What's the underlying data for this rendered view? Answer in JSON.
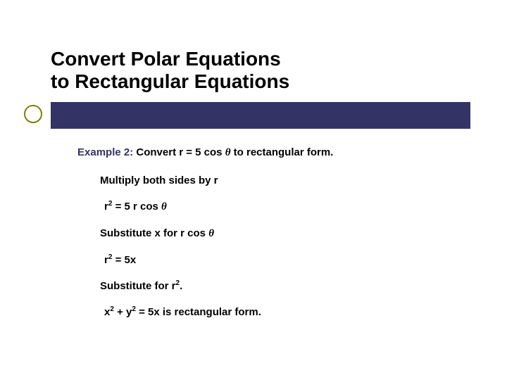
{
  "title_line1": "Convert Polar Equations",
  "title_line2": "to Rectangular Equations",
  "accent_bar_color": "#333366",
  "accent_dot_border_color": "#808000",
  "background_color": "#ffffff",
  "title_color": "#000000",
  "title_fontsize": 28,
  "example": {
    "label": "Example 2:",
    "label_color": "#333366",
    "prefix": "  Convert r = 5 cos ",
    "theta": "θ",
    "suffix": "  to rectangular form.",
    "text_color": "#000000"
  },
  "steps": {
    "step1": "Multiply both sides by r",
    "eq1_prefix": "r",
    "eq1_exp": "2",
    "eq1_mid": " = 5 r cos ",
    "eq1_theta": "θ",
    "step2_prefix": "Substitute x for r cos ",
    "step2_theta": "θ",
    "eq2_prefix": "r",
    "eq2_exp": "2",
    "eq2_suffix": " = 5x",
    "step3_prefix": "Substitute for r",
    "step3_exp": "2",
    "step3_suffix": ".",
    "eq3_x": "x",
    "eq3_exp1": "2",
    "eq3_plus": " + y",
    "eq3_exp2": "2",
    "eq3_suffix": " = 5x is rectangular form."
  },
  "body_fontsize": 15,
  "body_color": "#000000"
}
